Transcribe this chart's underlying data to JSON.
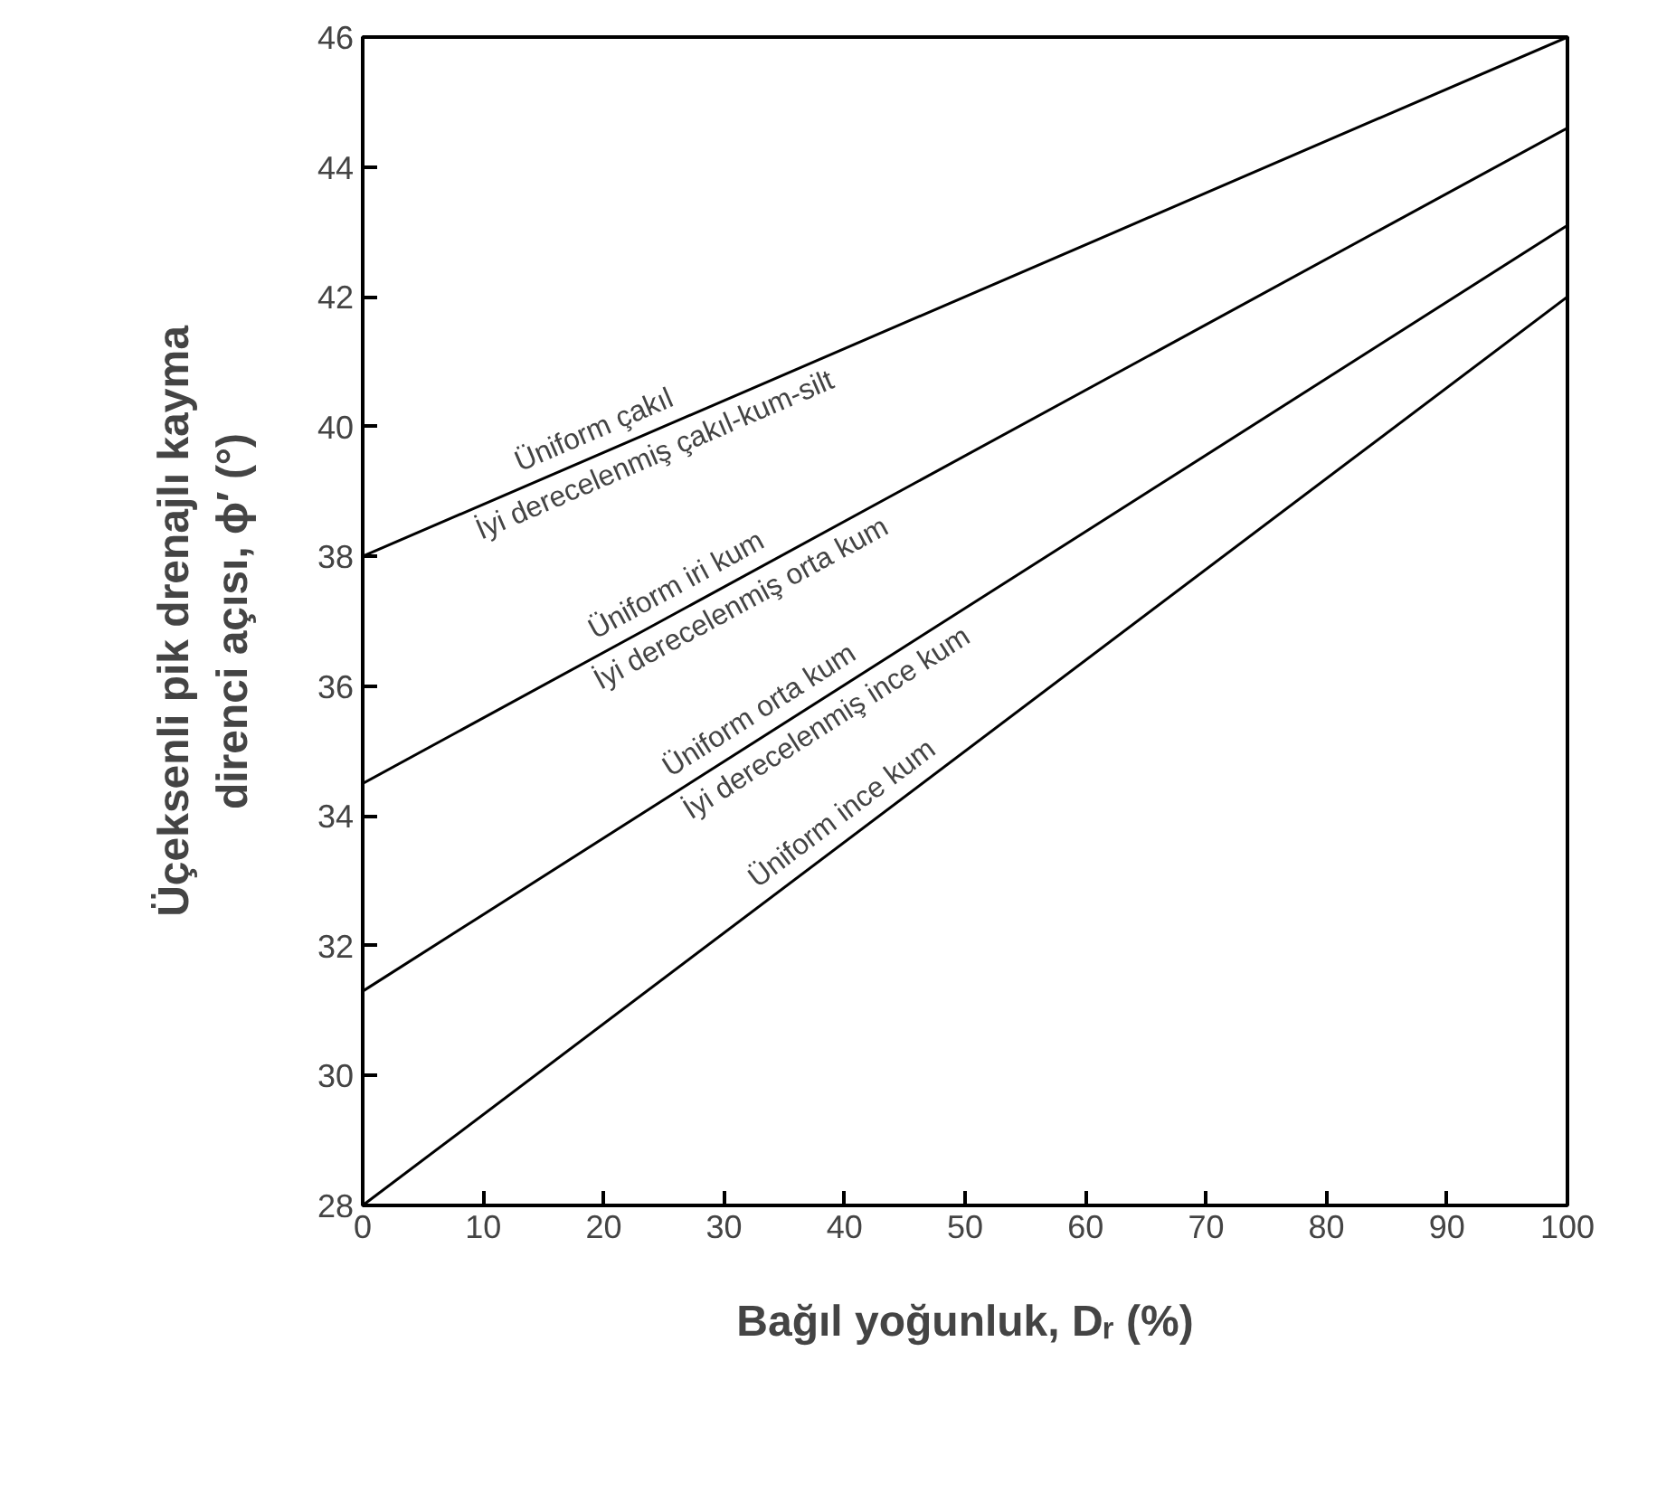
{
  "chart_data": {
    "type": "line",
    "xlabel": "Bağıl yoğunluk, Dᵣ (%)",
    "ylabel": "Üçeksenli pik drenajlı kayma\ndirenci açısı, ϕ′ (°)",
    "x": [
      0,
      100
    ],
    "xlim": [
      0,
      100
    ],
    "ylim": [
      28,
      46
    ],
    "xticks": [
      0,
      10,
      20,
      30,
      40,
      50,
      60,
      70,
      80,
      90,
      100
    ],
    "yticks": [
      28,
      30,
      32,
      34,
      36,
      38,
      40,
      42,
      44,
      46
    ],
    "grid": false,
    "marker": "none",
    "line_style": "solid",
    "series": [
      {
        "color": "#000000",
        "values": [
          38,
          46
        ]
      },
      {
        "color": "#000000",
        "values": [
          34.5,
          44.6
        ]
      },
      {
        "color": "#000000",
        "values": [
          31.3,
          43.1
        ]
      },
      {
        "color": "#000000",
        "values": [
          28,
          42
        ]
      }
    ],
    "annotations": [
      "Üniform çakıl",
      "İyi derecelenmiş çakıl-kum-silt",
      "Üniform iri kum",
      "İyi derecelenmiş orta kum",
      "Üniform orta kum",
      "İyi derecelenmiş ince kum",
      "Üniform ince kum"
    ]
  }
}
